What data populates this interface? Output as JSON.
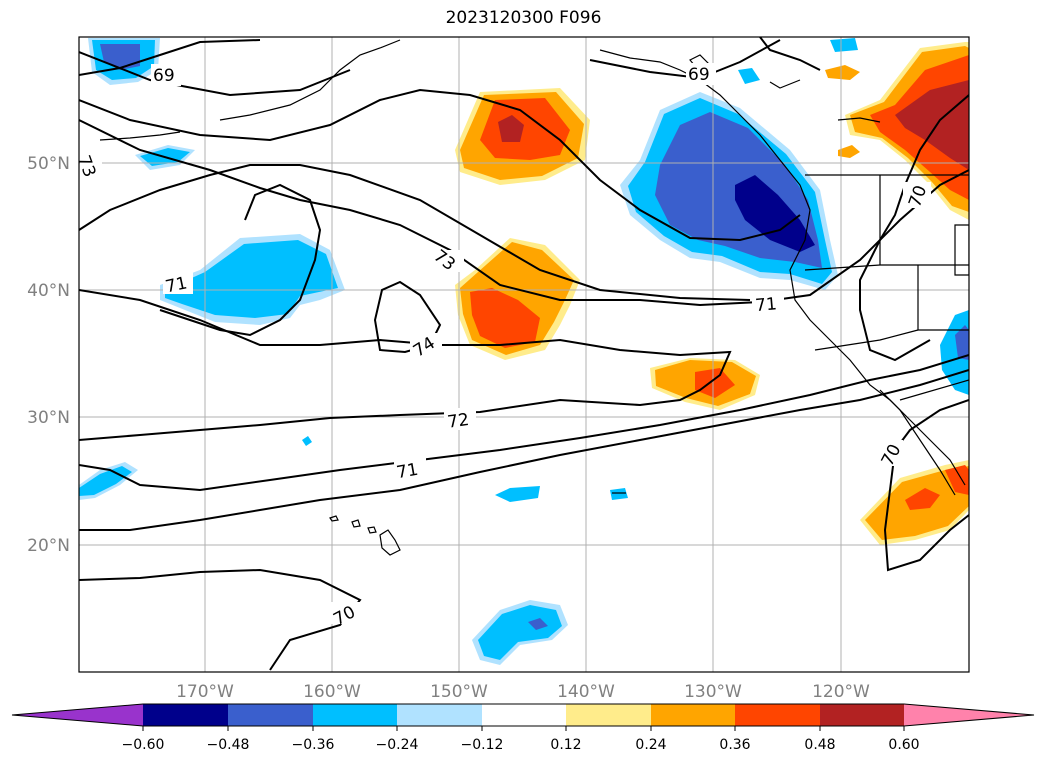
{
  "title": "2023120300 F096",
  "map": {
    "lon_ticks": [
      "170°W",
      "160°W",
      "150°W",
      "140°W",
      "130°W",
      "120°W"
    ],
    "lat_ticks": [
      "50°N",
      "40°N",
      "30°N",
      "20°N"
    ],
    "contour_labels": [
      "69",
      "69",
      "71",
      "73",
      "73",
      "74",
      "71",
      "72",
      "71",
      "70",
      "70",
      "70"
    ],
    "colors": {
      "coast": "#000000",
      "grid": "#b0b0b0",
      "neg_060": "#9933cc",
      "neg_048": "#00008b",
      "neg_036": "#3a5fcd",
      "neg_024": "#00bfff",
      "neg_012": "#b0e2ff",
      "pos_012": "#ffec8b",
      "pos_024": "#ffa500",
      "pos_036": "#ff4500",
      "pos_048": "#b22222",
      "pos_060": "#ff82ab"
    }
  },
  "colorbar": {
    "ticks": [
      "−0.60",
      "−0.48",
      "−0.36",
      "−0.24",
      "−0.12",
      "0.12",
      "0.24",
      "0.36",
      "0.48",
      "0.60"
    ]
  }
}
